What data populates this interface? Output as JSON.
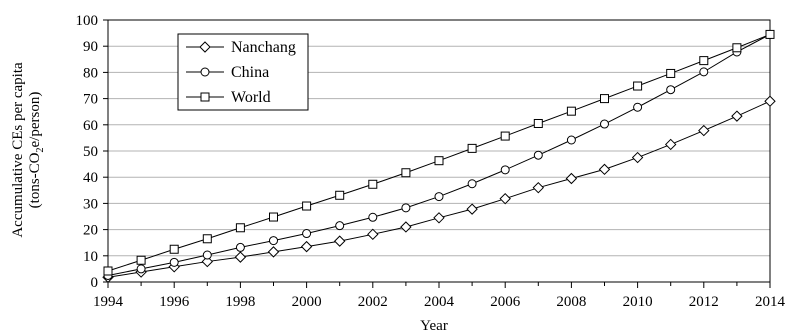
{
  "chart_data": {
    "type": "line",
    "xlabel": "Year",
    "ylabel_line1": "Accumulative CEs per capita",
    "ylabel_line2_pre": "(tons-CO",
    "ylabel_line2_sub": "2",
    "ylabel_line2_post": "e/person)",
    "xlim": [
      1994,
      2014
    ],
    "ylim": [
      0,
      100
    ],
    "x_ticks": [
      "1994",
      "1996",
      "1998",
      "2000",
      "2002",
      "2004",
      "2006",
      "2008",
      "2010",
      "2012",
      "2014"
    ],
    "y_ticks": [
      "0",
      "10",
      "20",
      "30",
      "40",
      "50",
      "60",
      "70",
      "80",
      "90",
      "100"
    ],
    "grid": "horizontal",
    "legend_position": "top-left",
    "x": [
      1994,
      1995,
      1996,
      1997,
      1998,
      1999,
      2000,
      2001,
      2002,
      2003,
      2004,
      2005,
      2006,
      2007,
      2008,
      2009,
      2010,
      2011,
      2012,
      2013,
      2014
    ],
    "series": [
      {
        "name": "Nanchang",
        "marker": "diamond",
        "values": [
          1.8,
          3.8,
          5.8,
          7.8,
          9.5,
          11.5,
          13.5,
          15.6,
          18.2,
          21.0,
          24.5,
          27.8,
          31.8,
          36.0,
          39.5,
          43.0,
          47.5,
          52.5,
          57.8,
          63.3,
          69.0
        ]
      },
      {
        "name": "China",
        "marker": "circle",
        "values": [
          2.5,
          5.0,
          7.5,
          10.3,
          13.2,
          15.8,
          18.5,
          21.5,
          24.7,
          28.3,
          32.6,
          37.5,
          42.8,
          48.4,
          54.2,
          60.3,
          66.7,
          73.4,
          80.2,
          87.8,
          94.5
        ]
      },
      {
        "name": "World",
        "marker": "square",
        "values": [
          4.2,
          8.3,
          12.5,
          16.5,
          20.7,
          24.8,
          29.0,
          33.1,
          37.3,
          41.7,
          46.3,
          51.0,
          55.7,
          60.5,
          65.2,
          70.0,
          74.8,
          79.6,
          84.5,
          89.4,
          94.5
        ]
      }
    ]
  }
}
